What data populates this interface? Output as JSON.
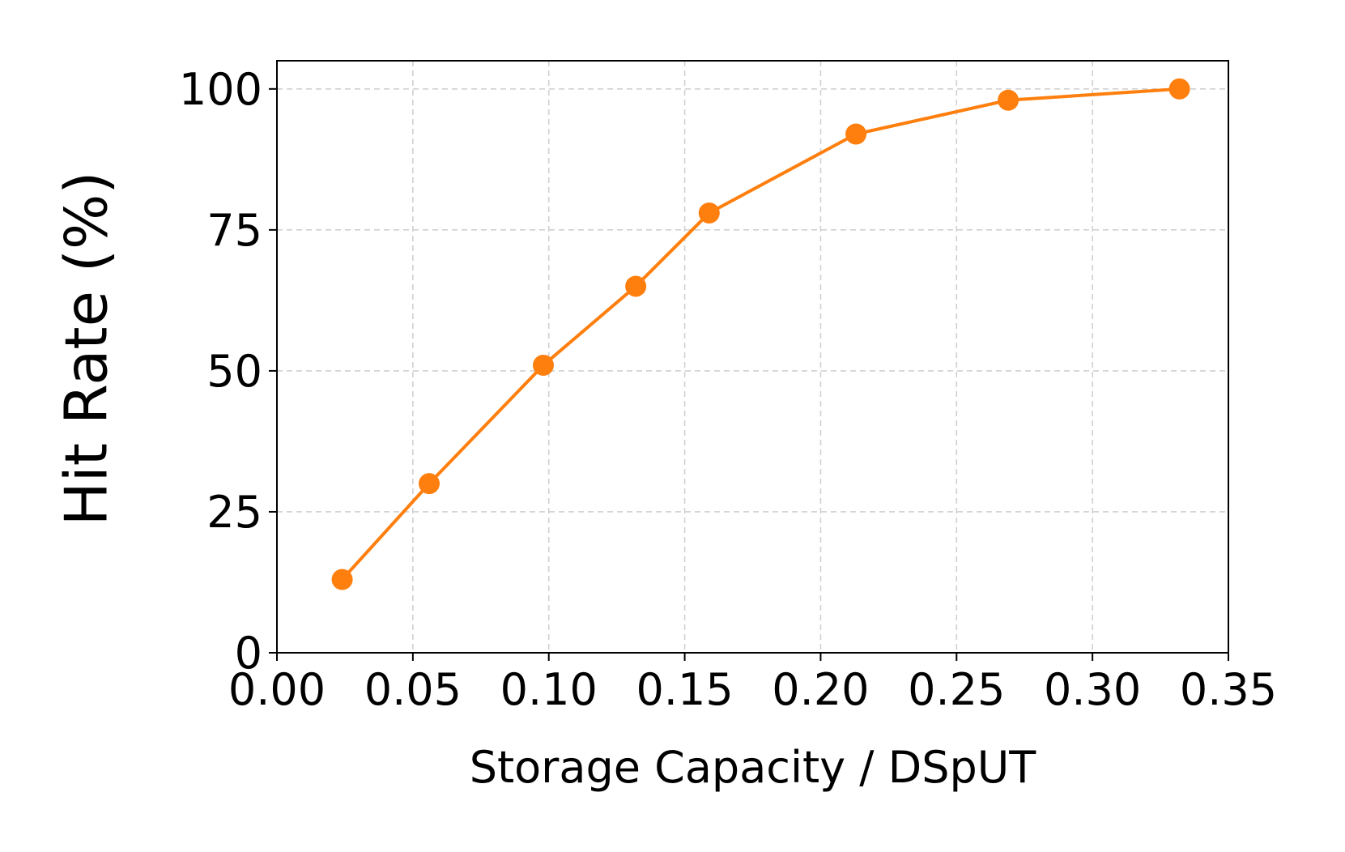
{
  "chart_data": {
    "type": "line",
    "title": "",
    "xlabel": "Storage Capacity / DSpUT",
    "ylabel": "Hit Rate (%)",
    "xlim": [
      0.0,
      0.35
    ],
    "ylim": [
      0,
      105
    ],
    "x_ticks": [
      "0.00",
      "0.05",
      "0.10",
      "0.15",
      "0.20",
      "0.25",
      "0.30",
      "0.35"
    ],
    "x_tick_values": [
      0.0,
      0.05,
      0.1,
      0.15,
      0.2,
      0.25,
      0.3,
      0.35
    ],
    "y_ticks": [
      "0",
      "25",
      "50",
      "75",
      "100"
    ],
    "y_tick_values": [
      0,
      25,
      50,
      75,
      100
    ],
    "grid": true,
    "legend": "none",
    "series": [
      {
        "color": "#ff7f0e",
        "marker": "circle",
        "x": [
          0.024,
          0.056,
          0.098,
          0.132,
          0.159,
          0.213,
          0.269,
          0.332
        ],
        "y": [
          13,
          30,
          51,
          65,
          78,
          92,
          98,
          100
        ]
      }
    ]
  }
}
